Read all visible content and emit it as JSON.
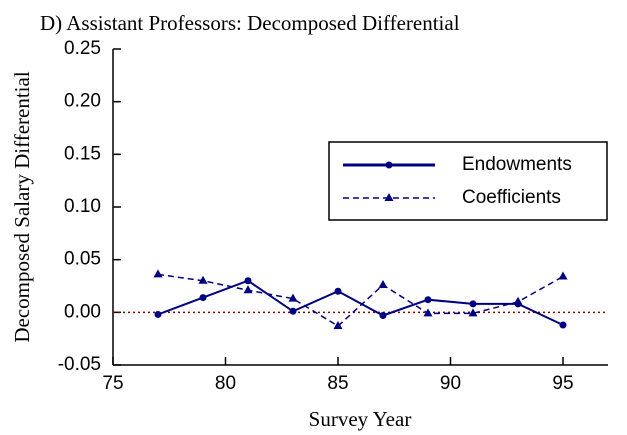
{
  "chart_data": {
    "type": "line",
    "title": "D)  Assistant Professors:  Decomposed Differential",
    "x_label": "Survey Year",
    "y_label": "Decomposed Salary Differential",
    "x": [
      77,
      79,
      81,
      83,
      85,
      87,
      89,
      91,
      93,
      95
    ],
    "series": [
      {
        "name": "Endowments",
        "color": "#000080",
        "line": "solid",
        "marker": "circle",
        "values": [
          -0.002,
          0.014,
          0.03,
          0.001,
          0.02,
          -0.003,
          0.012,
          0.008,
          0.008,
          -0.012
        ]
      },
      {
        "name": "Coefficients",
        "color": "#000080",
        "line": "dashed",
        "marker": "triangle",
        "values": [
          0.036,
          0.03,
          0.021,
          0.013,
          -0.013,
          0.026,
          -0.001,
          -0.001,
          0.01,
          0.034
        ]
      }
    ],
    "xlim": [
      75,
      97
    ],
    "xticks": [
      75,
      80,
      85,
      90,
      95
    ],
    "ylim": [
      -0.05,
      0.25
    ],
    "yticks": [
      -0.05,
      {
        "value": 0,
        "label": "0.00"
      },
      0.05,
      {
        "value": 0.1,
        "label": "0.10"
      },
      0.15,
      {
        "value": 0.2,
        "label": "0.20"
      },
      0.25
    ],
    "hline": {
      "value": 0,
      "color": "#800000"
    },
    "legend": "upper right",
    "grid": false
  }
}
